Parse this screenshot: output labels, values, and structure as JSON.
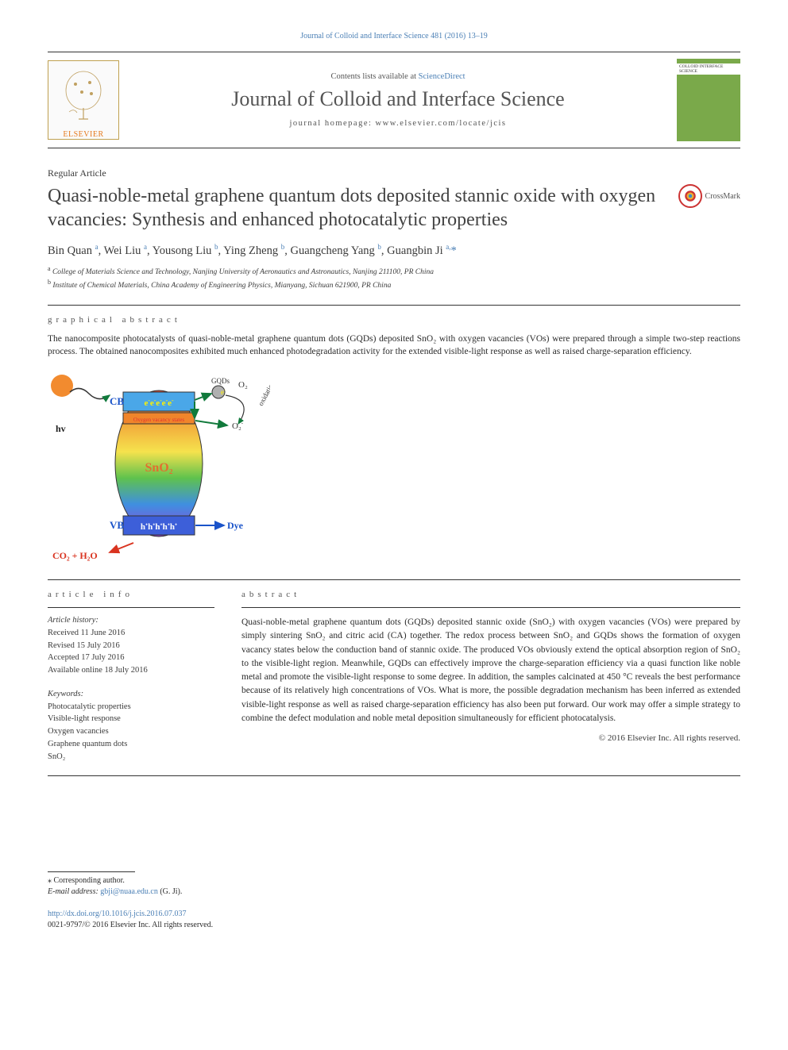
{
  "top_link": "Journal of Colloid and Interface Science 481 (2016) 13–19",
  "header": {
    "contents_prefix": "Contents lists available at ",
    "contents_link": "ScienceDirect",
    "journal_name": "Journal of Colloid and Interface Science",
    "homepage_prefix": "journal homepage: ",
    "homepage_url": "www.elsevier.com/locate/jcis",
    "publisher_label": "ELSEVIER",
    "cover_label": "COLLOID INTERFACE SCIENCE"
  },
  "crossmark_label": "CrossMark",
  "article_type": "Regular Article",
  "title": "Quasi-noble-metal graphene quantum dots deposited stannic oxide with oxygen vacancies: Synthesis and enhanced photocatalytic properties",
  "authors_html": "Bin Quan <sup>a</sup>, Wei Liu <sup>a</sup>, Yousong Liu <sup>b</sup>, Ying Zheng <sup>b</sup>, Guangcheng Yang <sup>b</sup>, Guangbin Ji <sup>a,</sup><span class='corr-star'>*</span>",
  "affiliations": [
    {
      "sup": "a",
      "text": "College of Materials Science and Technology, Nanjing University of Aeronautics and Astronautics, Nanjing 211100, PR China"
    },
    {
      "sup": "b",
      "text": "Institute of Chemical Materials, China Academy of Engineering Physics, Mianyang, Sichuan 621900, PR China"
    }
  ],
  "graphical_abstract": {
    "section_label": "graphical abstract",
    "caption": "The nanocomposite photocatalysts of quasi-noble-metal graphene quantum dots (GQDs) deposited SnO₂ with oxygen vacancies (VOs) were prepared through a simple two-step reactions process. The obtained nanocomposites exhibited much enhanced photodegradation activity for the extended visible-light response as well as raised charge-separation efficiency.",
    "figure": {
      "hv_label": "hv",
      "cb_label": "CB",
      "vb_label": "VB",
      "electrons": "e⁻e⁻e⁻e⁻e⁻",
      "holes": "h⁺h⁺h⁺h⁺h⁺",
      "ov_label": "Oxygen vacancy states",
      "sno2_label": "SnO₂",
      "gqd_label": "GQDs",
      "o2_label": "O₂",
      "o2minus_label": "O₂⁻",
      "oxidation_label": "oxidation",
      "dye_label": "Dye",
      "product_label": "CO₂ + H₂O",
      "colors": {
        "hv_circle": "#f28b2f",
        "cb_box": "#4aa7e8",
        "ov_box": "#f0852b",
        "vb_box": "#3d5fd9",
        "dye_text": "#1a53c9",
        "product_text": "#d9331f",
        "e_text": "#fff200",
        "arrow": "#117a3c",
        "ov_text": "#e03030",
        "gradient_top": "#e94b35",
        "gradient_mid1": "#f2a63a",
        "gradient_mid2": "#f5e24d",
        "gradient_mid3": "#5fc24d",
        "gradient_mid4": "#3f8fe0",
        "gradient_bot": "#9a3fd9"
      },
      "stroke_width": 1.5,
      "title_fontsize": 12
    }
  },
  "article_info": {
    "section_label": "article info",
    "history_label": "Article history:",
    "history": [
      "Received 11 June 2016",
      "Revised 15 July 2016",
      "Accepted 17 July 2016",
      "Available online 18 July 2016"
    ],
    "keywords_label": "Keywords:",
    "keywords": [
      "Photocatalytic properties",
      "Visible-light response",
      "Oxygen vacancies",
      "Graphene quantum dots",
      "SnO₂"
    ]
  },
  "abstract": {
    "section_label": "abstract",
    "text": "Quasi-noble-metal graphene quantum dots (GQDs) deposited stannic oxide (SnO₂) with oxygen vacancies (VOs) were prepared by simply sintering SnO₂ and citric acid (CA) together. The redox process between SnO₂ and GQDs shows the formation of oxygen vacancy states below the conduction band of stannic oxide. The produced VOs obviously extend the optical absorption region of SnO₂ to the visible-light region. Meanwhile, GQDs can effectively improve the charge-separation efficiency via a quasi function like noble metal and promote the visible-light response to some degree. In addition, the samples calcinated at 450 °C reveals the best performance because of its relatively high concentrations of VOs. What is more, the possible degradation mechanism has been inferred as extended visible-light response as well as raised charge-separation efficiency has also been put forward. Our work may offer a simple strategy to combine the defect modulation and noble metal deposition simultaneously for efficient photocatalysis.",
    "copyright": "© 2016 Elsevier Inc. All rights reserved."
  },
  "footer": {
    "corr_label": "⁎ Corresponding author.",
    "email_label": "E-mail address: ",
    "email": "gbji@nuaa.edu.cn",
    "email_suffix": " (G. Ji).",
    "doi": "http://dx.doi.org/10.1016/j.jcis.2016.07.037",
    "issn_line": "0021-9797/© 2016 Elsevier Inc. All rights reserved."
  }
}
